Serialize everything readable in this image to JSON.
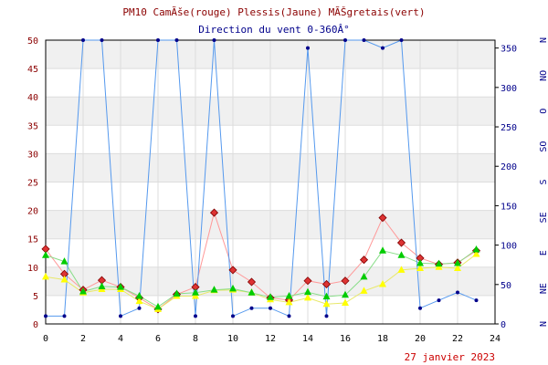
{
  "chart_data": {
    "type": "line",
    "title": "PM10 CamÃše(rouge) Plessis(Jaune) MÃŠgretais(vert)",
    "subtitle": "Direction du vent 0-360Â°",
    "date_label": "27 janvier 2023",
    "x_ticks": [
      0,
      2,
      4,
      6,
      8,
      10,
      12,
      14,
      16,
      18,
      20,
      22,
      24
    ],
    "xlim": [
      0,
      24
    ],
    "ylim_left": [
      0,
      50
    ],
    "y_left_ticks": [
      0,
      5,
      10,
      15,
      20,
      25,
      30,
      35,
      40,
      45,
      50
    ],
    "ylim_right": [
      0,
      360
    ],
    "y_right_ticks": [
      0,
      50,
      100,
      150,
      200,
      250,
      300,
      350
    ],
    "direction_labels": [
      "N",
      "NE",
      "E",
      "SE",
      "S",
      "SO",
      "O",
      "NO",
      "N"
    ],
    "direction_values": [
      0,
      45,
      90,
      135,
      180,
      225,
      270,
      315,
      360
    ],
    "grid": true,
    "series": [
      {
        "color": "#dd3333",
        "line_color": "#ff9999",
        "marker": "diamond",
        "axis": "left",
        "x": [
          0,
          1,
          2,
          3,
          4,
          5,
          6,
          7,
          8,
          9,
          10,
          11,
          12,
          13,
          14,
          15,
          16,
          17,
          18,
          19,
          20,
          21,
          22,
          23
        ],
        "values": [
          13.2,
          8.8,
          6.0,
          7.7,
          6.5,
          4.6,
          2.6,
          5.2,
          6.5,
          19.6,
          9.5,
          7.4,
          4.6,
          4.2,
          7.6,
          7.0,
          7.6,
          11.3,
          18.7,
          14.3,
          11.6,
          10.5,
          10.8,
          12.9
        ]
      },
      {
        "color": "#ffff00",
        "line_color": "#e8e86a",
        "marker": "triangle",
        "axis": "left",
        "x": [
          0,
          1,
          2,
          3,
          4,
          5,
          6,
          7,
          8,
          9,
          10,
          11,
          12,
          13,
          14,
          15,
          16,
          17,
          18,
          19,
          20,
          21,
          22,
          23
        ],
        "values": [
          8.3,
          7.8,
          5.5,
          6.1,
          6.1,
          4.0,
          2.6,
          4.9,
          4.9,
          5.9,
          6.0,
          5.5,
          4.3,
          3.8,
          4.6,
          3.5,
          3.7,
          5.8,
          7.0,
          9.5,
          9.8,
          10.0,
          9.8,
          12.3
        ]
      },
      {
        "color": "#00cc00",
        "line_color": "#88dd88",
        "marker": "triangle",
        "axis": "left",
        "x": [
          0,
          1,
          2,
          3,
          4,
          5,
          6,
          7,
          8,
          9,
          10,
          11,
          12,
          13,
          14,
          15,
          16,
          17,
          18,
          19,
          20,
          21,
          22,
          23
        ],
        "values": [
          12.1,
          11.0,
          5.7,
          6.6,
          6.5,
          4.9,
          3.0,
          5.3,
          5.5,
          6.0,
          6.2,
          5.5,
          4.7,
          4.9,
          5.6,
          4.8,
          5.1,
          8.3,
          12.9,
          12.1,
          10.7,
          10.6,
          10.7,
          13.1
        ]
      },
      {
        "color": "#00008b",
        "line_color": "#5599ee",
        "marker": "dot",
        "axis": "right",
        "x": [
          0,
          1,
          2,
          3,
          4,
          5,
          6,
          7,
          8,
          9,
          10,
          11,
          12,
          13,
          14,
          15,
          16,
          17,
          18,
          19,
          20,
          21,
          22,
          23
        ],
        "values": [
          10,
          10,
          360,
          360,
          10,
          20,
          360,
          360,
          10,
          360,
          10,
          20,
          20,
          10,
          350,
          10,
          360,
          360,
          350,
          360,
          20,
          30,
          40,
          30
        ]
      }
    ]
  }
}
